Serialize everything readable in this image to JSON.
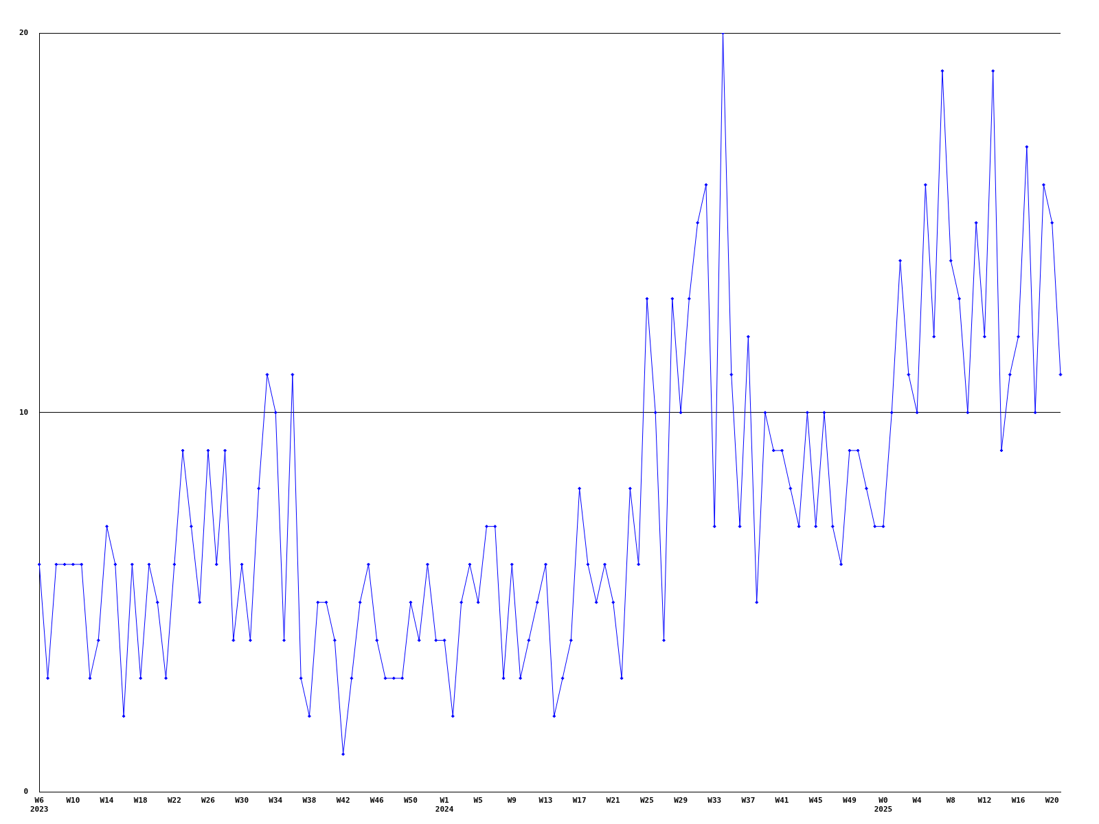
{
  "chart_data": {
    "type": "line",
    "categories": [
      "W6\n2023",
      null,
      null,
      null,
      "W10",
      null,
      null,
      null,
      "W14",
      null,
      null,
      null,
      "W18",
      null,
      null,
      null,
      "W22",
      null,
      null,
      null,
      "W26",
      null,
      null,
      null,
      "W30",
      null,
      null,
      null,
      "W34",
      null,
      null,
      null,
      "W38",
      null,
      null,
      null,
      "W42",
      null,
      null,
      null,
      "W46",
      null,
      null,
      null,
      "W50",
      null,
      null,
      null,
      "W1\n2024",
      null,
      null,
      null,
      "W5",
      null,
      null,
      null,
      "W9",
      null,
      null,
      null,
      "W13",
      null,
      null,
      null,
      "W17",
      null,
      null,
      null,
      "W21",
      null,
      null,
      null,
      "W25",
      null,
      null,
      null,
      "W29",
      null,
      null,
      null,
      "W33",
      null,
      null,
      null,
      "W37",
      null,
      null,
      null,
      "W41",
      null,
      null,
      null,
      "W45",
      null,
      null,
      null,
      "W49",
      null,
      null,
      null,
      "W0\n2025",
      null,
      null,
      null,
      "W4",
      null,
      null,
      null,
      "W8",
      null,
      null,
      null,
      "W12",
      null,
      null,
      null,
      "W16",
      null,
      null,
      null,
      "W20",
      null
    ],
    "series": [
      {
        "color": "#0000ff",
        "values": [
          6,
          3,
          6,
          6,
          6,
          6,
          3,
          4,
          7,
          6,
          2,
          6,
          3,
          6,
          5,
          3,
          6,
          9,
          7,
          5,
          9,
          6,
          9,
          4,
          6,
          4,
          8,
          11,
          10,
          4,
          11,
          3,
          2,
          5,
          5,
          4,
          1,
          3,
          5,
          6,
          4,
          3,
          3,
          3,
          5,
          4,
          6,
          4,
          4,
          2,
          5,
          6,
          5,
          7,
          7,
          3,
          6,
          3,
          4,
          5,
          6,
          2,
          3,
          4,
          8,
          6,
          5,
          6,
          5,
          3,
          8,
          6,
          13,
          10,
          4,
          13,
          10,
          13,
          15,
          16,
          7,
          20,
          11,
          7,
          12,
          5,
          10,
          9,
          9,
          8,
          7,
          10,
          7,
          10,
          7,
          6,
          9,
          9,
          8,
          7,
          7,
          10,
          14,
          11,
          10,
          16,
          12,
          19,
          14,
          13,
          10,
          15,
          12,
          19,
          9,
          11,
          12,
          17,
          10,
          16,
          15,
          11
        ]
      }
    ],
    "ylim": [
      0,
      20
    ],
    "yticks": [
      0,
      10,
      20
    ],
    "grid": "y",
    "legend": false,
    "marker": "diamond",
    "line_style": "solid"
  }
}
